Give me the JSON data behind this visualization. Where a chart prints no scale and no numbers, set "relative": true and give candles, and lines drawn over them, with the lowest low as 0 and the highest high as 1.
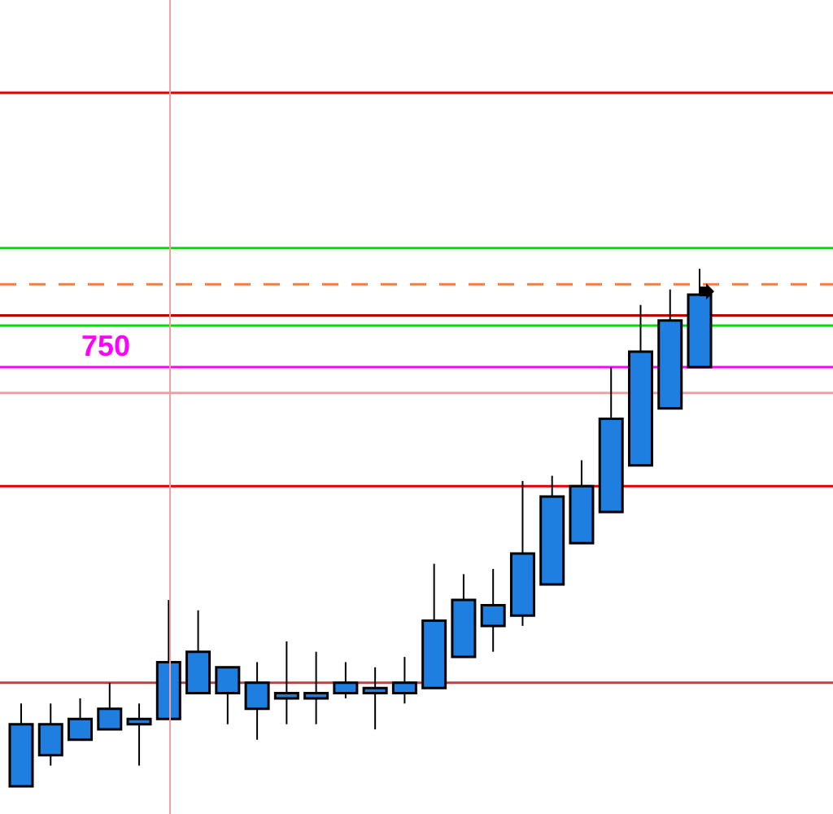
{
  "chart_data": {
    "type": "candlestick",
    "relative": true,
    "color": "#1e7fe0",
    "categories": [
      null,
      null,
      null,
      null,
      null,
      null,
      null,
      null,
      null,
      null,
      null,
      null,
      null,
      null,
      null,
      null,
      null,
      null,
      null,
      null,
      null,
      null,
      null,
      null
    ],
    "ohlc": [
      [
        0,
        0.16,
        0,
        0.12
      ],
      [
        0.06,
        0.16,
        0.04,
        0.12
      ],
      [
        0.09,
        0.17,
        0.09,
        0.13
      ],
      [
        0.11,
        0.2,
        0.11,
        0.15
      ],
      [
        0.12,
        0.16,
        0.04,
        0.13
      ],
      [
        0.13,
        0.36,
        0.13,
        0.24
      ],
      [
        0.18,
        0.34,
        0.18,
        0.26
      ],
      [
        0.18,
        0.23,
        0.12,
        0.23
      ],
      [
        0.15,
        0.24,
        0.09,
        0.2
      ],
      [
        0.17,
        0.28,
        0.12,
        0.18
      ],
      [
        0.17,
        0.26,
        0.12,
        0.18
      ],
      [
        0.18,
        0.24,
        0.17,
        0.2
      ],
      [
        0.18,
        0.23,
        0.11,
        0.19
      ],
      [
        0.18,
        0.25,
        0.16,
        0.2
      ],
      [
        0.19,
        0.43,
        0.19,
        0.32
      ],
      [
        0.25,
        0.41,
        0.25,
        0.36
      ],
      [
        0.31,
        0.42,
        0.26,
        0.35
      ],
      [
        0.33,
        0.59,
        0.31,
        0.45
      ],
      [
        0.39,
        0.6,
        0.39,
        0.56
      ],
      [
        0.47,
        0.63,
        0.47,
        0.58
      ],
      [
        0.53,
        0.81,
        0.53,
        0.71
      ],
      [
        0.62,
        0.93,
        0.62,
        0.84
      ],
      [
        0.73,
        0.96,
        0.73,
        0.9
      ],
      [
        0.81,
        1,
        0.81,
        0.95
      ]
    ],
    "ref_lines": [
      {
        "axis": "y",
        "value": 1.34,
        "color": "#e00000"
      },
      {
        "axis": "y",
        "value": 1.04,
        "color": "#00e000"
      },
      {
        "axis": "y",
        "value": 0.97,
        "color": "#f08040",
        "line_style": "dashed"
      },
      {
        "axis": "y",
        "value": 0.91,
        "color": "#c00000"
      },
      {
        "axis": "y",
        "value": 0.89,
        "color": "#00e000"
      },
      {
        "axis": "y",
        "value": 0.81,
        "color": "#ff00ff"
      },
      {
        "axis": "y",
        "value": 0.76,
        "color": "#f0a0a0"
      },
      {
        "axis": "y",
        "value": 0.58,
        "color": "#e00000"
      },
      {
        "axis": "y",
        "value": 0.2,
        "color": "#c04040"
      }
    ],
    "annotations": [
      {
        "text": "750",
        "y": 0.81
      }
    ],
    "legend": false
  }
}
